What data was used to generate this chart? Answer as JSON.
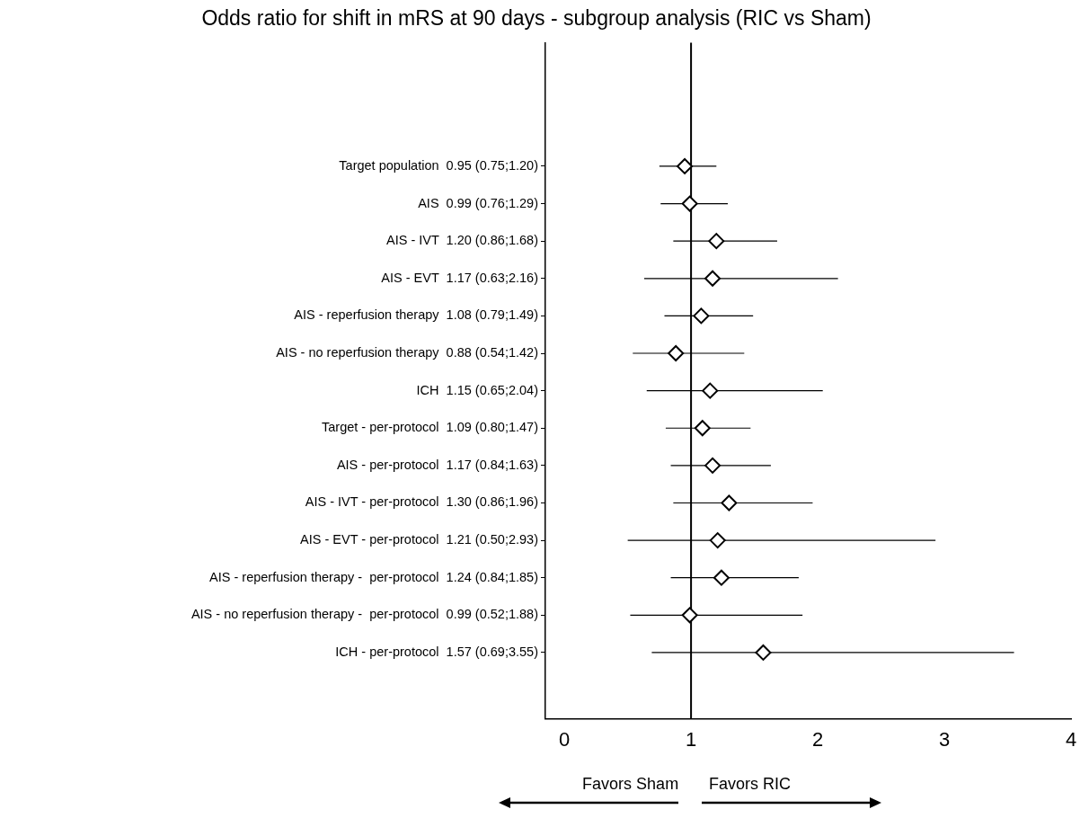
{
  "chart_data": {
    "type": "scatter",
    "orientation": "horizontal",
    "title": "Odds ratio for shift in mRS at 90 days - subgroup analysis (RIC vs Sham)",
    "categories": [
      "Target population  0.95 (0.75;1.20)",
      "AIS  0.99 (0.76;1.29)",
      "AIS - IVT  1.20 (0.86;1.68)",
      "AIS - EVT  1.17 (0.63;2.16)",
      "AIS - reperfusion therapy  1.08 (0.79;1.49)",
      "AIS - no reperfusion therapy  0.88 (0.54;1.42)",
      "ICH  1.15 (0.65;2.04)",
      "Target - per-protocol  1.09 (0.80;1.47)",
      "AIS - per-protocol  1.17 (0.84;1.63)",
      "AIS - IVT - per-protocol  1.30 (0.86;1.96)",
      "AIS - EVT - per-protocol  1.21 (0.50;2.93)",
      "AIS - reperfusion therapy -  per-protocol  1.24 (0.84;1.85)",
      "AIS - no reperfusion therapy -  per-protocol  0.99 (0.52;1.88)",
      "ICH - per-protocol  1.57 (0.69;3.55)"
    ],
    "values": [
      0.95,
      0.99,
      1.2,
      1.17,
      1.08,
      0.88,
      1.15,
      1.09,
      1.17,
      1.3,
      1.21,
      1.24,
      0.99,
      1.57
    ],
    "errors": [
      [
        0.75,
        1.2
      ],
      [
        0.76,
        1.29
      ],
      [
        0.86,
        1.68
      ],
      [
        0.63,
        2.16
      ],
      [
        0.79,
        1.49
      ],
      [
        0.54,
        1.42
      ],
      [
        0.65,
        2.04
      ],
      [
        0.8,
        1.47
      ],
      [
        0.84,
        1.63
      ],
      [
        0.86,
        1.96
      ],
      [
        0.5,
        2.93
      ],
      [
        0.84,
        1.85
      ],
      [
        0.52,
        1.88
      ],
      [
        0.69,
        3.55
      ]
    ],
    "color": "#000000",
    "marker": "diamond",
    "xlim": [
      -0.15,
      4
    ],
    "xticks": [
      0,
      1,
      2,
      3,
      4
    ],
    "ref_lines": [
      {
        "axis": "x",
        "value": 1,
        "color": "#000000"
      }
    ],
    "annotations": [
      "Favors Sham",
      "Favors RIC"
    ],
    "grid": false,
    "legend": false
  }
}
